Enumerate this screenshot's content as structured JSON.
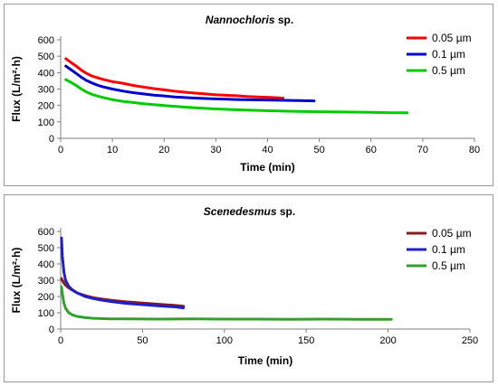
{
  "chart_data": [
    {
      "type": "line",
      "title": "Nannochloris",
      "title_suffix": " sp.",
      "xlabel": "Time (min)",
      "ylabel": "Flux (L/m²·h)",
      "xlim": [
        0,
        80
      ],
      "ylim": [
        0,
        600
      ],
      "xticks": [
        "0",
        "10",
        "20",
        "30",
        "40",
        "50",
        "60",
        "70",
        "80"
      ],
      "yticks": [
        "0",
        "100",
        "200",
        "300",
        "400",
        "500",
        "600"
      ],
      "xtick_values": [
        0,
        10,
        20,
        30,
        40,
        50,
        60,
        70,
        80
      ],
      "ytick_values": [
        0,
        100,
        200,
        300,
        400,
        500,
        600
      ],
      "grid": false,
      "legend_position": "top-right",
      "series": [
        {
          "name": "0.05 µm",
          "color": "#ff0000",
          "points": [
            [
              1,
              485
            ],
            [
              2,
              462
            ],
            [
              3,
              440
            ],
            [
              4,
              415
            ],
            [
              5,
              395
            ],
            [
              6,
              380
            ],
            [
              7,
              370
            ],
            [
              8,
              360
            ],
            [
              10,
              345
            ],
            [
              12,
              335
            ],
            [
              14,
              322
            ],
            [
              16,
              312
            ],
            [
              18,
              303
            ],
            [
              20,
              295
            ],
            [
              22,
              287
            ],
            [
              24,
              281
            ],
            [
              26,
              275
            ],
            [
              28,
              270
            ],
            [
              30,
              265
            ],
            [
              32,
              262
            ],
            [
              34,
              259
            ],
            [
              36,
              255
            ],
            [
              38,
              252
            ],
            [
              40,
              250
            ],
            [
              43,
              245
            ]
          ]
        },
        {
          "name": "0.1 µm",
          "color": "#0000cc",
          "points": [
            [
              1,
              440
            ],
            [
              2,
              418
            ],
            [
              3,
              395
            ],
            [
              4,
              372
            ],
            [
              5,
              352
            ],
            [
              6,
              338
            ],
            [
              7,
              325
            ],
            [
              8,
              315
            ],
            [
              10,
              300
            ],
            [
              12,
              288
            ],
            [
              14,
              278
            ],
            [
              16,
              270
            ],
            [
              18,
              263
            ],
            [
              20,
              258
            ],
            [
              22,
              252
            ],
            [
              24,
              248
            ],
            [
              26,
              245
            ],
            [
              28,
              242
            ],
            [
              30,
              240
            ],
            [
              34,
              236
            ],
            [
              38,
              234
            ],
            [
              42,
              232
            ],
            [
              46,
              230
            ],
            [
              49,
              228
            ]
          ]
        },
        {
          "name": "0.5 µm",
          "color": "#00cc00",
          "points": [
            [
              1,
              357
            ],
            [
              2,
              340
            ],
            [
              3,
              322
            ],
            [
              4,
              300
            ],
            [
              5,
              282
            ],
            [
              6,
              268
            ],
            [
              7,
              258
            ],
            [
              8,
              250
            ],
            [
              10,
              235
            ],
            [
              12,
              225
            ],
            [
              14,
              218
            ],
            [
              16,
              211
            ],
            [
              18,
              205
            ],
            [
              20,
              200
            ],
            [
              22,
              195
            ],
            [
              24,
              190
            ],
            [
              26,
              186
            ],
            [
              28,
              182
            ],
            [
              30,
              179
            ],
            [
              34,
              174
            ],
            [
              38,
              170
            ],
            [
              42,
              167
            ],
            [
              46,
              164
            ],
            [
              50,
              162
            ],
            [
              55,
              160
            ],
            [
              60,
              158
            ],
            [
              64,
              156
            ],
            [
              67,
              155
            ]
          ]
        }
      ]
    },
    {
      "type": "line",
      "title": "Scenedesmus",
      "title_suffix": " sp.",
      "xlabel": "Time (min)",
      "ylabel": "Flux (L/m²·h)",
      "xlim": [
        0,
        250
      ],
      "ylim": [
        0,
        600
      ],
      "xticks": [
        "0",
        "50",
        "100",
        "150",
        "200",
        "250"
      ],
      "yticks": [
        "0",
        "100",
        "200",
        "300",
        "400",
        "500",
        "600"
      ],
      "xtick_values": [
        0,
        50,
        100,
        150,
        200,
        250
      ],
      "ytick_values": [
        0,
        100,
        200,
        300,
        400,
        500,
        600
      ],
      "grid": false,
      "legend_position": "top-right",
      "series": [
        {
          "name": "0.05 µm",
          "color": "#8b1a1a",
          "points": [
            [
              0.5,
              310
            ],
            [
              1,
              300
            ],
            [
              2,
              282
            ],
            [
              3,
              270
            ],
            [
              5,
              253
            ],
            [
              7,
              240
            ],
            [
              10,
              222
            ],
            [
              15,
              205
            ],
            [
              20,
              193
            ],
            [
              25,
              185
            ],
            [
              30,
              178
            ],
            [
              35,
              172
            ],
            [
              40,
              167
            ],
            [
              50,
              160
            ],
            [
              60,
              152
            ],
            [
              70,
              145
            ],
            [
              75,
              140
            ]
          ]
        },
        {
          "name": "0.1 µm",
          "color": "#1f1fcc",
          "points": [
            [
              0.5,
              560
            ],
            [
              1,
              450
            ],
            [
              2,
              350
            ],
            [
              3,
              300
            ],
            [
              5,
              262
            ],
            [
              7,
              242
            ],
            [
              10,
              222
            ],
            [
              15,
              200
            ],
            [
              20,
              187
            ],
            [
              25,
              178
            ],
            [
              30,
              170
            ],
            [
              35,
              164
            ],
            [
              40,
              158
            ],
            [
              50,
              150
            ],
            [
              60,
              142
            ],
            [
              70,
              136
            ],
            [
              75,
              130
            ]
          ]
        },
        {
          "name": "0.5 µm",
          "color": "#33a02c",
          "points": [
            [
              0.5,
              260
            ],
            [
              1,
              220
            ],
            [
              2,
              160
            ],
            [
              3,
              128
            ],
            [
              5,
              100
            ],
            [
              7,
              88
            ],
            [
              10,
              78
            ],
            [
              15,
              70
            ],
            [
              20,
              66
            ],
            [
              30,
              63
            ],
            [
              40,
              62
            ],
            [
              60,
              61
            ],
            [
              80,
              62
            ],
            [
              100,
              61
            ],
            [
              120,
              61
            ],
            [
              140,
              60
            ],
            [
              160,
              61
            ],
            [
              180,
              60
            ],
            [
              200,
              60
            ],
            [
              202,
              60
            ]
          ]
        }
      ]
    }
  ]
}
